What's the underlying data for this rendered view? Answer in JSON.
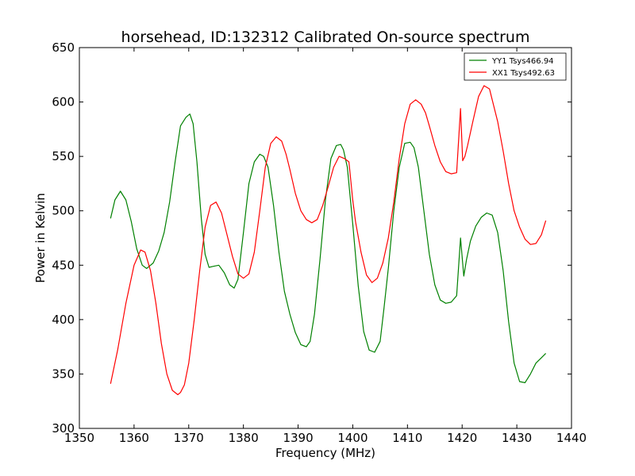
{
  "chart_data": {
    "type": "line",
    "title": "horsehead, ID:132312 Calibrated On-source spectrum",
    "xlabel": "Frequency (MHz)",
    "ylabel": "Power in Kelvin",
    "xlim": [
      1350,
      1440
    ],
    "ylim": [
      300,
      650
    ],
    "xticks": [
      1350,
      1360,
      1370,
      1380,
      1390,
      1400,
      1410,
      1420,
      1430,
      1440
    ],
    "yticks": [
      300,
      350,
      400,
      450,
      500,
      550,
      600,
      650
    ],
    "grid": false,
    "legend_position": "top-right",
    "series": [
      {
        "name": "YY1 Tsys466.94",
        "color": "#008000",
        "x": [
          1355.7,
          1356.5,
          1357.5,
          1358.5,
          1359.5,
          1360.5,
          1361.5,
          1362.3,
          1363.5,
          1364.5,
          1365.5,
          1366.5,
          1367.5,
          1368.5,
          1369.5,
          1370.2,
          1370.8,
          1371.5,
          1372.3,
          1373.0,
          1373.7,
          1374.5,
          1375.5,
          1376.5,
          1377.5,
          1378.3,
          1379.0,
          1380.0,
          1381.0,
          1382.0,
          1383.0,
          1383.7,
          1384.5,
          1385.5,
          1386.5,
          1387.5,
          1388.5,
          1389.5,
          1390.5,
          1391.5,
          1392.2,
          1393.0,
          1394.0,
          1395.0,
          1396.0,
          1397.0,
          1397.8,
          1398.3,
          1399.0,
          1400.0,
          1401.0,
          1402.0,
          1403.0,
          1404.0,
          1405.0,
          1405.7,
          1406.5,
          1407.5,
          1408.5,
          1409.5,
          1410.5,
          1411.2,
          1412.0,
          1413.0,
          1414.0,
          1415.0,
          1416.0,
          1417.0,
          1418.0,
          1419.0,
          1419.7,
          1420.3,
          1420.8,
          1421.5,
          1422.5,
          1423.5,
          1424.5,
          1425.5,
          1426.5,
          1427.5,
          1428.5,
          1429.5,
          1430.5,
          1431.5,
          1432.5,
          1433.5,
          1434.5,
          1435.3
        ],
        "y": [
          493,
          510,
          518,
          510,
          490,
          465,
          450,
          447,
          452,
          463,
          480,
          508,
          545,
          578,
          586,
          589,
          580,
          545,
          493,
          460,
          448,
          449,
          450,
          443,
          432,
          429,
          437,
          480,
          525,
          545,
          552,
          550,
          540,
          505,
          462,
          426,
          405,
          388,
          377,
          375,
          380,
          405,
          455,
          510,
          548,
          560,
          561,
          556,
          540,
          488,
          431,
          389,
          372,
          370,
          380,
          410,
          447,
          500,
          540,
          562,
          563,
          558,
          540,
          500,
          460,
          432,
          418,
          415,
          416,
          422,
          475,
          440,
          455,
          472,
          486,
          494,
          498,
          496,
          480,
          445,
          398,
          360,
          343,
          342,
          350,
          360,
          365,
          369
        ]
      },
      {
        "name": "XX1 Tsys492.63",
        "color": "#ff0000",
        "x": [
          1355.7,
          1357.0,
          1358.5,
          1360.0,
          1361.2,
          1362.0,
          1363.0,
          1364.0,
          1365.0,
          1366.0,
          1367.0,
          1368.0,
          1368.5,
          1369.2,
          1370.0,
          1371.0,
          1372.0,
          1373.0,
          1374.0,
          1375.0,
          1376.0,
          1377.0,
          1378.0,
          1379.0,
          1380.0,
          1381.0,
          1382.0,
          1383.0,
          1384.0,
          1385.0,
          1386.0,
          1387.0,
          1387.8,
          1388.5,
          1389.5,
          1390.5,
          1391.5,
          1392.5,
          1393.5,
          1394.5,
          1395.5,
          1396.5,
          1397.5,
          1398.5,
          1399.3,
          1400.0,
          1400.5,
          1401.5,
          1402.5,
          1403.5,
          1404.5,
          1405.5,
          1406.5,
          1407.5,
          1408.5,
          1409.5,
          1410.5,
          1411.5,
          1412.5,
          1413.3,
          1414.0,
          1415.0,
          1416.0,
          1417.0,
          1418.0,
          1419.0,
          1419.7,
          1420.1,
          1420.5,
          1421.0,
          1422.0,
          1423.0,
          1424.0,
          1425.0,
          1425.5,
          1426.5,
          1427.5,
          1428.5,
          1429.5,
          1430.5,
          1431.5,
          1432.5,
          1433.5,
          1434.5,
          1435.3
        ],
        "y": [
          341,
          372,
          415,
          450,
          464,
          462,
          445,
          415,
          378,
          350,
          335,
          331,
          333,
          340,
          360,
          400,
          445,
          485,
          505,
          508,
          498,
          478,
          458,
          442,
          438,
          442,
          462,
          500,
          540,
          562,
          568,
          564,
          552,
          538,
          516,
          500,
          492,
          489,
          492,
          505,
          522,
          540,
          550,
          548,
          545,
          510,
          490,
          462,
          441,
          434,
          438,
          452,
          475,
          508,
          548,
          580,
          598,
          602,
          598,
          590,
          578,
          560,
          545,
          536,
          534,
          535,
          594,
          546,
          550,
          560,
          583,
          605,
          615,
          612,
          602,
          582,
          555,
          525,
          500,
          485,
          474,
          469,
          470,
          478,
          491
        ]
      }
    ]
  }
}
